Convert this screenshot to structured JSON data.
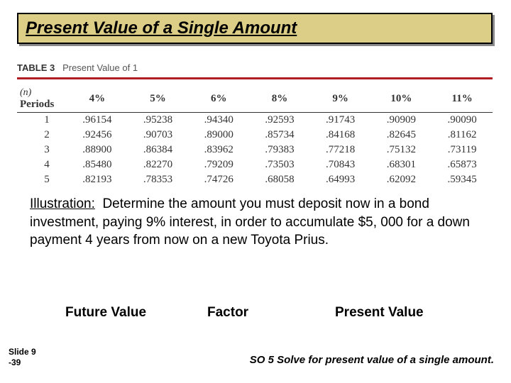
{
  "title": "Present Value of a Single Amount",
  "table": {
    "caption_label": "TABLE 3",
    "caption_text": "Present Value of 1",
    "n_label": "(n)",
    "periods_label": "Periods",
    "rate_headers": [
      "4%",
      "5%",
      "6%",
      "8%",
      "9%",
      "10%",
      "11%"
    ],
    "rows": [
      {
        "period": "1",
        "values": [
          ".96154",
          ".95238",
          ".94340",
          ".92593",
          ".91743",
          ".90909",
          ".90090"
        ]
      },
      {
        "period": "2",
        "values": [
          ".92456",
          ".90703",
          ".89000",
          ".85734",
          ".84168",
          ".82645",
          ".81162"
        ]
      },
      {
        "period": "3",
        "values": [
          ".88900",
          ".86384",
          ".83962",
          ".79383",
          ".77218",
          ".75132",
          ".73119"
        ]
      },
      {
        "period": "4",
        "values": [
          ".85480",
          ".82270",
          ".79209",
          ".73503",
          ".70843",
          ".68301",
          ".65873"
        ]
      },
      {
        "period": "5",
        "values": [
          ".82193",
          ".78353",
          ".74726",
          ".68058",
          ".64993",
          ".62092",
          ".59345"
        ]
      }
    ]
  },
  "illustration": {
    "label": "Illustration:",
    "body": "Determine the amount you must deposit now in a bond investment, paying 9% interest, in order to accumulate $5, 000 for a down payment 4 years from now on a new Toyota Prius."
  },
  "columns": {
    "future_value": "Future Value",
    "factor": "Factor",
    "present_value": "Present Value"
  },
  "slide": {
    "line1": "Slide 9",
    "line2": "-39"
  },
  "footer": "SO 5  Solve for present value of a single amount.",
  "colors": {
    "title_bg": "#dcce86",
    "title_shadow": "#888888",
    "red_rule": "#b01c24",
    "text": "#000000",
    "table_text": "#333333"
  }
}
